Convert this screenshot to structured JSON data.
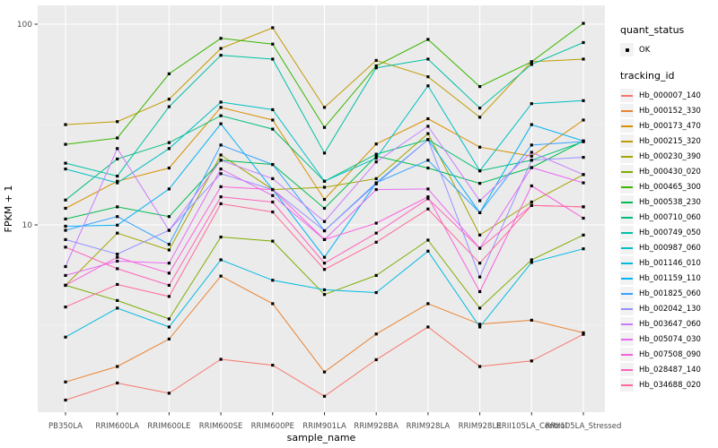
{
  "figure": {
    "background": "#FFFFFF",
    "panel_bg": "#EBEBEB",
    "grid_major_color": "#FFFFFF",
    "grid_minor_color": "#FFFFFF",
    "tick_color": "#333333",
    "tick_label_color": "#4D4D4D",
    "point_color": "#000000"
  },
  "chart_data": {
    "type": "line",
    "title": "",
    "xlabel": "sample_name",
    "ylabel": "FPKM + 1",
    "y_scale": "log10",
    "y_ticks": [
      100,
      10
    ],
    "y_minor_ticks": [
      31.62,
      3.162
    ],
    "ylim": [
      1.18,
      115
    ],
    "grid": true,
    "legend_position": "right",
    "categories": [
      "PB350LA",
      "RRIM600LA",
      "RRIM600LE",
      "RRIM600SE",
      "RRIM600PE",
      "RRIM901LA",
      "RRIM928BA",
      "RRIM928LA",
      "RRIM928LE",
      "RRII105LA_Control",
      "RRII105LA_Stressed"
    ],
    "series": [
      {
        "name": "Hb_000007_140",
        "color": "#F8766D",
        "values": [
          1.34,
          1.63,
          1.45,
          2.14,
          2.0,
          1.4,
          2.13,
          3.1,
          1.97,
          2.1,
          2.85
        ]
      },
      {
        "name": "Hb_000152_330",
        "color": "#EA8331",
        "values": [
          1.65,
          1.97,
          2.7,
          5.56,
          4.05,
          1.85,
          2.86,
          4.05,
          3.2,
          3.35,
          2.9
        ]
      },
      {
        "name": "Hb_000173_470",
        "color": "#D89000",
        "values": [
          12.1,
          16.5,
          19.2,
          38.5,
          33.3,
          13.4,
          25.3,
          33.8,
          24.4,
          22.0,
          33.3
        ]
      },
      {
        "name": "Hb_000215_320",
        "color": "#C09B00",
        "values": [
          31.6,
          32.7,
          42.3,
          75.7,
          96.0,
          38.5,
          66.0,
          54.7,
          34.4,
          65.0,
          67.0
        ]
      },
      {
        "name": "Hb_000230_390",
        "color": "#A3A500",
        "values": [
          5.0,
          9.1,
          7.5,
          22.3,
          15.0,
          15.4,
          17.0,
          28.5,
          8.9,
          13.0,
          17.8
        ]
      },
      {
        "name": "Hb_000430_020",
        "color": "#7CAE00",
        "values": [
          5.0,
          4.2,
          3.4,
          8.7,
          8.3,
          4.5,
          5.6,
          8.4,
          3.85,
          6.7,
          8.9
        ]
      },
      {
        "name": "Hb_000465_300",
        "color": "#39B600",
        "values": [
          25.2,
          27.1,
          56.6,
          85.0,
          79.6,
          30.6,
          62.0,
          84.0,
          48.9,
          65.0,
          101.0
        ]
      },
      {
        "name": "Hb_000538_230",
        "color": "#00BB4E",
        "values": [
          10.7,
          12.3,
          11.0,
          21.0,
          20.0,
          12.1,
          22.0,
          19.2,
          16.1,
          19.3,
          26.2
        ]
      },
      {
        "name": "Hb_000710_060",
        "color": "#00BF7D",
        "values": [
          13.3,
          21.3,
          25.7,
          35.0,
          30.0,
          16.5,
          22.5,
          26.6,
          18.6,
          21.0,
          26.0
        ]
      },
      {
        "name": "Hb_000749_050",
        "color": "#00C1A3",
        "values": [
          20.3,
          17.5,
          38.8,
          70.0,
          67.0,
          22.8,
          60.6,
          67.0,
          38.2,
          63.0,
          81.0
        ]
      },
      {
        "name": "Hb_000987_060",
        "color": "#00BFC4",
        "values": [
          19.0,
          16.2,
          24.0,
          40.9,
          37.5,
          16.5,
          21.5,
          49.3,
          18.6,
          40.2,
          41.6
        ]
      },
      {
        "name": "Hb_001146_010",
        "color": "#00BAE0",
        "values": [
          2.76,
          3.85,
          3.1,
          6.7,
          5.3,
          4.75,
          4.6,
          7.4,
          3.1,
          6.5,
          7.6
        ]
      },
      {
        "name": "Hb_001159_110",
        "color": "#00B0F6",
        "values": [
          9.85,
          9.97,
          15.1,
          31.9,
          15.0,
          6.9,
          16.2,
          26.6,
          11.5,
          31.6,
          26.2
        ]
      },
      {
        "name": "Hb_001825_060",
        "color": "#35A2FF",
        "values": [
          9.4,
          11.0,
          8.0,
          25.0,
          20.0,
          9.35,
          16.2,
          21.0,
          11.5,
          25.0,
          26.0
        ]
      },
      {
        "name": "Hb_002042_130",
        "color": "#9590FF",
        "values": [
          8.45,
          7.15,
          9.4,
          18.0,
          15.0,
          9.35,
          16.0,
          26.6,
          5.5,
          21.0,
          21.7
        ]
      },
      {
        "name": "Hb_003647_060",
        "color": "#C77CFF",
        "values": [
          6.2,
          24.0,
          9.4,
          21.0,
          17.0,
          10.4,
          20.6,
          31.0,
          13.2,
          23.0,
          17.8
        ]
      },
      {
        "name": "Hb_005074_030",
        "color": "#E76BF3",
        "values": [
          5.6,
          6.6,
          6.45,
          19.0,
          14.0,
          8.45,
          15.0,
          15.1,
          7.65,
          19.3,
          16.2
        ]
      },
      {
        "name": "Hb_007508_090",
        "color": "#FA62DB",
        "values": [
          5.0,
          6.9,
          5.75,
          15.5,
          15.0,
          8.45,
          10.2,
          13.8,
          4.65,
          15.65,
          10.8
        ]
      },
      {
        "name": "Hb_028487_140",
        "color": "#FF62BC",
        "values": [
          7.75,
          6.05,
          5.0,
          13.8,
          13.0,
          6.45,
          9.1,
          13.5,
          7.65,
          12.5,
          12.3
        ]
      },
      {
        "name": "Hb_034688_020",
        "color": "#FF6A98",
        "values": [
          3.9,
          5.05,
          4.4,
          12.75,
          11.6,
          6.0,
          8.2,
          12.0,
          6.45,
          12.5,
          12.3
        ]
      }
    ],
    "legend": {
      "quant_status_title": "quant_status",
      "quant_ok_label": "OK",
      "tracking_title": "tracking_id"
    }
  }
}
